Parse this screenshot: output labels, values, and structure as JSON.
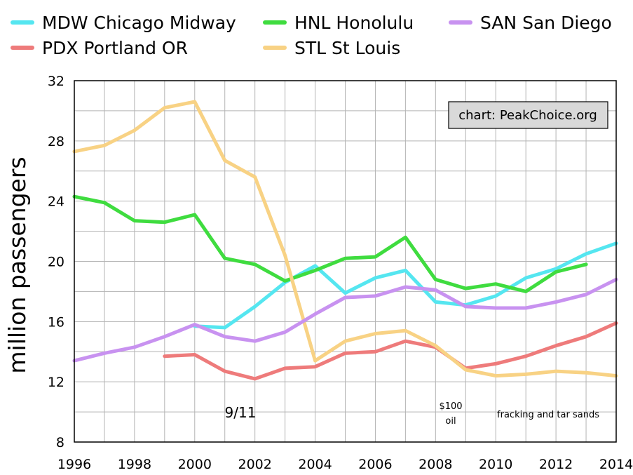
{
  "chart_data": {
    "type": "line",
    "title": "",
    "xlabel": "",
    "ylabel": "million passengers",
    "x": [
      1996,
      1997,
      1998,
      1999,
      2000,
      2001,
      2002,
      2003,
      2004,
      2005,
      2006,
      2007,
      2008,
      2009,
      2010,
      2011,
      2012,
      2013,
      2014
    ],
    "xlim": [
      1996,
      2014
    ],
    "ylim": [
      8,
      32
    ],
    "xticks": [
      1996,
      1998,
      2000,
      2002,
      2004,
      2006,
      2008,
      2010,
      2012,
      2014
    ],
    "yticks": [
      8,
      12,
      16,
      20,
      24,
      28,
      32
    ],
    "grid": true,
    "legend": "top",
    "series": [
      {
        "name": "MDW Chicago Midway",
        "color": "#55e6f0",
        "values": [
          null,
          null,
          null,
          null,
          15.7,
          15.6,
          17.0,
          18.6,
          19.7,
          17.9,
          18.9,
          19.4,
          17.3,
          17.1,
          17.7,
          18.9,
          19.5,
          20.5,
          21.2
        ]
      },
      {
        "name": "PDX Portland OR",
        "color": "#ee7b7b",
        "values": [
          null,
          null,
          null,
          13.7,
          13.8,
          12.7,
          12.2,
          12.9,
          13.0,
          13.9,
          14.0,
          14.7,
          14.3,
          12.9,
          13.2,
          13.7,
          14.4,
          15.0,
          15.9
        ]
      },
      {
        "name": "HNL Honolulu",
        "color": "#3fdc3f",
        "values": [
          24.3,
          23.9,
          22.7,
          22.6,
          23.1,
          20.2,
          19.8,
          18.7,
          19.4,
          20.2,
          20.3,
          21.6,
          18.8,
          18.2,
          18.5,
          18.0,
          19.3,
          19.8,
          null
        ]
      },
      {
        "name": "STL St Louis",
        "color": "#f8d284",
        "values": [
          27.3,
          27.7,
          28.7,
          30.2,
          30.6,
          26.7,
          25.6,
          20.4,
          13.4,
          14.7,
          15.2,
          15.4,
          14.4,
          12.8,
          12.4,
          12.5,
          12.7,
          12.6,
          12.4
        ]
      },
      {
        "name": "SAN San Diego",
        "color": "#c892f0",
        "values": [
          13.4,
          13.9,
          14.3,
          15.0,
          15.8,
          15.0,
          14.7,
          15.3,
          16.5,
          17.6,
          17.7,
          18.3,
          18.1,
          17.0,
          16.9,
          16.9,
          17.3,
          17.8,
          18.8
        ]
      }
    ],
    "annotations": {
      "event_911": "9/11",
      "oil_line1": "$100",
      "oil_line2": "oil",
      "fracking": "fracking and tar sands",
      "credit": "chart: PeakChoice.org"
    }
  }
}
